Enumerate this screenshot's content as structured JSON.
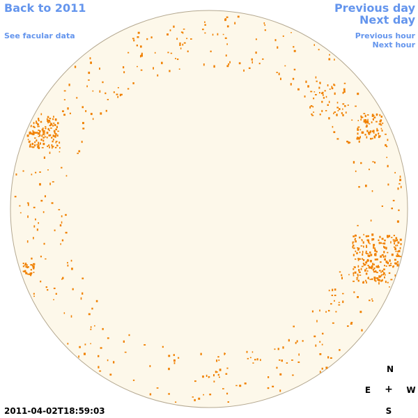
{
  "nav": {
    "back_label": "Back to 2011",
    "facular_label": "See facular data",
    "prev_day_label": "Previous day",
    "next_day_label": "Next day",
    "prev_hour_label": "Previous hour",
    "next_hour_label": "Next hour"
  },
  "compass": {
    "north": "N",
    "south": "S",
    "east": "E",
    "west": "W",
    "center": "+"
  },
  "timestamp": "2011-04-02T18:59:03",
  "colors": {
    "link": "#6495ed",
    "disk_fill": "#fdf8ea",
    "disk_stroke": "#b4a890",
    "feature": "#f08000"
  }
}
